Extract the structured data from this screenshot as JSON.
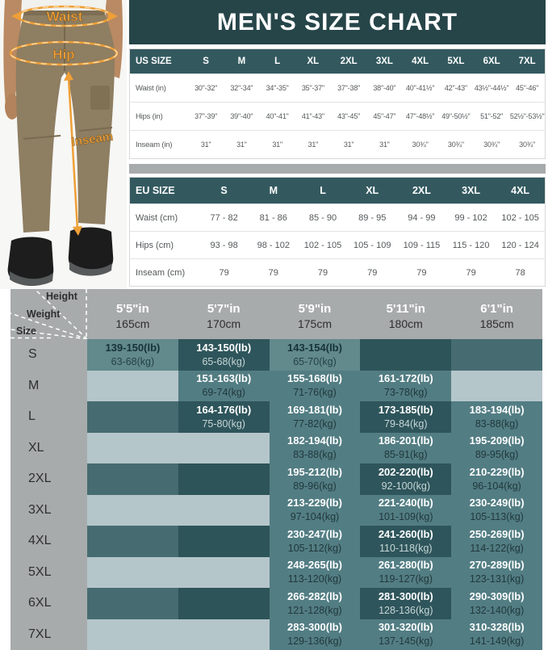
{
  "title": "MEN'S SIZE CHART",
  "colors": {
    "banner_teal": "#264549",
    "header_teal": "#33595f",
    "gray_band": "#a8abac",
    "highlight_cell": "#2e555b",
    "mid_cell": "#527d83",
    "light_row": "#b5c6ca",
    "annotation_orange": "#ef9f37"
  },
  "figure": {
    "waist_label": "Waist",
    "hip_label": "Hip",
    "inseam_label": "Inseam"
  },
  "us_table": {
    "header_label": "US SIZE",
    "sizes": [
      "S",
      "M",
      "L",
      "XL",
      "2XL",
      "3XL",
      "4XL",
      "5XL",
      "6XL",
      "7XL"
    ],
    "rows": [
      {
        "label": "Waist (in)",
        "values": [
          "30\"-32\"",
          "32\"-34\"",
          "34\"-35\"",
          "35\"-37\"",
          "37\"-38\"",
          "38\"-40\"",
          "40\"-41½\"",
          "42\"-43\"",
          "43½\"-44½\"",
          "45\"-46\""
        ]
      },
      {
        "label": "Hips (in)",
        "values": [
          "37\"-39\"",
          "39\"-40\"",
          "40\"-41\"",
          "41\"-43\"",
          "43\"-45\"",
          "45\"-47\"",
          "47\"-48½\"",
          "49\"-50½\"",
          "51\"-52\"",
          "52½\"-53½\""
        ]
      },
      {
        "label": "Inseam (in)",
        "values": [
          "31\"",
          "31\"",
          "31\"",
          "31\"",
          "31\"",
          "31\"",
          "30¾\"",
          "30¾\"",
          "30¾\"",
          "30¾\""
        ]
      }
    ]
  },
  "eu_table": {
    "header_label": "EU SIZE",
    "sizes": [
      "S",
      "M",
      "L",
      "XL",
      "2XL",
      "3XL",
      "4XL"
    ],
    "rows": [
      {
        "label": "Waist (cm)",
        "values": [
          "77 - 82",
          "81 - 86",
          "85 - 90",
          "89 - 95",
          "94 - 99",
          "99 - 102",
          "102 - 105"
        ]
      },
      {
        "label": "Hips (cm)",
        "values": [
          "93 - 98",
          "98 - 102",
          "102 - 105",
          "105 - 109",
          "109 - 115",
          "115 - 120",
          "120 - 124"
        ]
      },
      {
        "label": "Inseam (cm)",
        "values": [
          "79",
          "79",
          "79",
          "79",
          "79",
          "79",
          "78"
        ]
      }
    ]
  },
  "matrix": {
    "corner": {
      "height": "Height",
      "weight": "Weight",
      "size": "Size"
    },
    "columns": [
      {
        "ft": "5'5\"in",
        "cm": "165cm"
      },
      {
        "ft": "5'7\"in",
        "cm": "170cm"
      },
      {
        "ft": "5'9\"in",
        "cm": "175cm"
      },
      {
        "ft": "5'11\"in",
        "cm": "180cm"
      },
      {
        "ft": "6'1\"in",
        "cm": "185cm"
      }
    ],
    "rows": [
      {
        "size": "S",
        "cells": [
          {
            "lb": "139-150(lb)",
            "kg": "63-68(kg)",
            "style": "dim"
          },
          {
            "lb": "143-150(lb)",
            "kg": "65-68(kg)",
            "style": "dark"
          },
          {
            "lb": "143-154(lb)",
            "kg": "65-70(kg)",
            "style": "dim"
          },
          {
            "style": "ed"
          },
          {
            "style": "em"
          }
        ]
      },
      {
        "size": "M",
        "cells": [
          {
            "style": "el"
          },
          {
            "lb": "151-163(lb)",
            "kg": "69-74(kg)",
            "style": "mid"
          },
          {
            "lb": "155-168(lb)",
            "kg": "71-76(kg)",
            "style": "mid"
          },
          {
            "lb": "161-172(lb)",
            "kg": "73-78(kg)",
            "style": "mid"
          },
          {
            "style": "el"
          }
        ]
      },
      {
        "size": "L",
        "cells": [
          {
            "style": "em"
          },
          {
            "lb": "164-176(lb)",
            "kg": "75-80(kg)",
            "style": "dark"
          },
          {
            "lb": "169-181(lb)",
            "kg": "77-82(kg)",
            "style": "mid"
          },
          {
            "lb": "173-185(lb)",
            "kg": "79-84(kg)",
            "style": "dark"
          },
          {
            "lb": "183-194(lb)",
            "kg": "83-88(kg)",
            "style": "mid"
          }
        ]
      },
      {
        "size": "XL",
        "cells": [
          {
            "style": "el"
          },
          {
            "style": "el"
          },
          {
            "lb": "182-194(lb)",
            "kg": "83-88(kg)",
            "style": "mid"
          },
          {
            "lb": "186-201(lb)",
            "kg": "85-91(kg)",
            "style": "mid"
          },
          {
            "lb": "195-209(lb)",
            "kg": "89-95(kg)",
            "style": "mid"
          }
        ]
      },
      {
        "size": "2XL",
        "cells": [
          {
            "style": "em"
          },
          {
            "style": "ed"
          },
          {
            "lb": "195-212(lb)",
            "kg": "89-96(kg)",
            "style": "mid"
          },
          {
            "lb": "202-220(lb)",
            "kg": "92-100(kg)",
            "style": "dark"
          },
          {
            "lb": "210-229(lb)",
            "kg": "96-104(kg)",
            "style": "mid"
          }
        ]
      },
      {
        "size": "3XL",
        "cells": [
          {
            "style": "el"
          },
          {
            "style": "el"
          },
          {
            "lb": "213-229(lb)",
            "kg": "97-104(kg)",
            "style": "mid"
          },
          {
            "lb": "221-240(lb)",
            "kg": "101-109(kg)",
            "style": "mid"
          },
          {
            "lb": "230-249(lb)",
            "kg": "105-113(kg)",
            "style": "mid"
          }
        ]
      },
      {
        "size": "4XL",
        "cells": [
          {
            "style": "em"
          },
          {
            "style": "ed"
          },
          {
            "lb": "230-247(lb)",
            "kg": "105-112(kg)",
            "style": "mid"
          },
          {
            "lb": "241-260(lb)",
            "kg": "110-118(kg)",
            "style": "dark"
          },
          {
            "lb": "250-269(lb)",
            "kg": "114-122(kg)",
            "style": "mid"
          }
        ]
      },
      {
        "size": "5XL",
        "cells": [
          {
            "style": "el"
          },
          {
            "style": "el"
          },
          {
            "lb": "248-265(lb)",
            "kg": "113-120(kg)",
            "style": "mid"
          },
          {
            "lb": "261-280(lb)",
            "kg": "119-127(kg)",
            "style": "mid"
          },
          {
            "lb": "270-289(lb)",
            "kg": "123-131(kg)",
            "style": "mid"
          }
        ]
      },
      {
        "size": "6XL",
        "cells": [
          {
            "style": "em"
          },
          {
            "style": "ed"
          },
          {
            "lb": "266-282(lb)",
            "kg": "121-128(kg)",
            "style": "mid"
          },
          {
            "lb": "281-300(lb)",
            "kg": "128-136(kg)",
            "style": "dark"
          },
          {
            "lb": "290-309(lb)",
            "kg": "132-140(kg)",
            "style": "mid"
          }
        ]
      },
      {
        "size": "7XL",
        "cells": [
          {
            "style": "el"
          },
          {
            "style": "el"
          },
          {
            "lb": "283-300(lb)",
            "kg": "129-136(kg)",
            "style": "mid"
          },
          {
            "lb": "301-320(lb)",
            "kg": "137-145(kg)",
            "style": "mid"
          },
          {
            "lb": "310-328(lb)",
            "kg": "141-149(kg)",
            "style": "mid"
          }
        ]
      }
    ]
  }
}
